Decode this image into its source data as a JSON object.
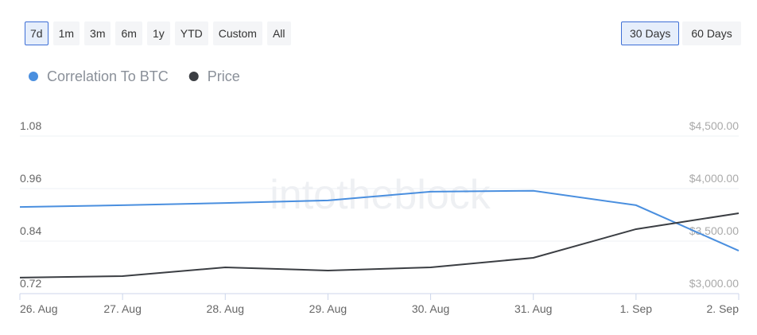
{
  "range_buttons": [
    "7d",
    "1m",
    "3m",
    "6m",
    "1y",
    "YTD",
    "Custom",
    "All"
  ],
  "period_buttons": [
    "30 Days",
    "60 Days"
  ],
  "chart_data": {
    "type": "line",
    "watermark": "intotheblock",
    "categories": [
      "26. Aug",
      "27. Aug",
      "28. Aug",
      "29. Aug",
      "30. Aug",
      "31. Aug",
      "1. Sep",
      "2. Sep"
    ],
    "series": [
      {
        "name": "Correlation To BTC",
        "color": "#4a8fdf",
        "values": [
          0.918,
          0.922,
          0.927,
          0.933,
          0.953,
          0.955,
          0.922,
          0.818
        ]
      },
      {
        "name": "Price",
        "color": "#3b3e43",
        "axis": "y2",
        "values": [
          3152,
          3167,
          3250,
          3220,
          3250,
          3341,
          3614,
          3765
        ]
      }
    ],
    "ylim": [
      0.72,
      1.08
    ],
    "yticks": [
      0.72,
      0.84,
      0.96,
      1.08
    ],
    "y2lim": [
      3000,
      4500
    ],
    "y2ticks": [
      {
        "value": 3000,
        "label": "$3,000.00"
      },
      {
        "value": 3500,
        "label": "$3,500.00"
      },
      {
        "value": 4000,
        "label": "$4,000.00"
      },
      {
        "value": 4500,
        "label": "$4,500.00"
      }
    ],
    "grid": true
  }
}
